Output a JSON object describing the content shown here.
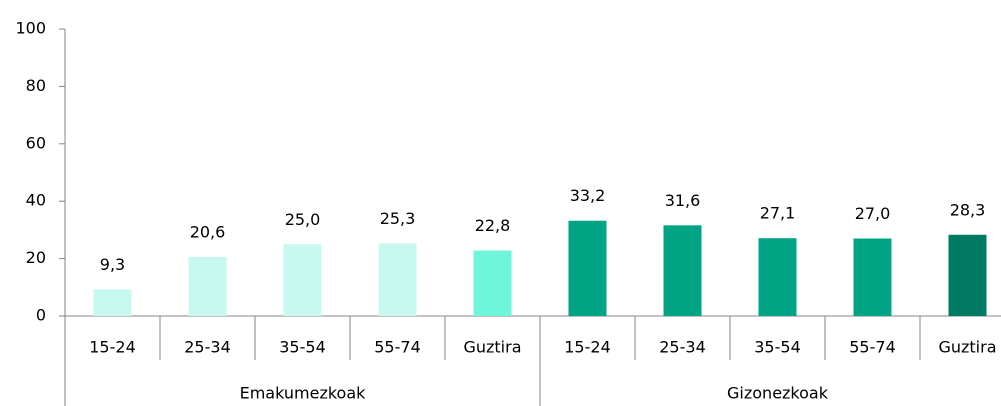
{
  "chart_data": {
    "type": "bar",
    "groups": [
      {
        "label": "Emakumezkoak",
        "categories": [
          "15-24",
          "25-34",
          "35-54",
          "55-74",
          "Guztira"
        ],
        "values": [
          9.3,
          20.6,
          25.0,
          25.3,
          22.8
        ],
        "value_labels": [
          "9,3",
          "20,6",
          "25,0",
          "25,3",
          "22,8"
        ],
        "colors": [
          "#c7f9f1",
          "#c7f9f1",
          "#c7f9f1",
          "#c7f9f1",
          "#6ff5d9"
        ]
      },
      {
        "label": "Gizonezkoak",
        "categories": [
          "15-24",
          "25-34",
          "35-54",
          "55-74",
          "Guztira"
        ],
        "values": [
          33.2,
          31.6,
          27.1,
          27.0,
          28.3
        ],
        "value_labels": [
          "33,2",
          "31,6",
          "27,1",
          "27,0",
          "28,3"
        ],
        "colors": [
          "#00a383",
          "#00a383",
          "#00a383",
          "#00a383",
          "#007a62"
        ]
      }
    ],
    "ylim": [
      0,
      100
    ],
    "yticks": [
      0,
      20,
      40,
      60,
      80,
      100
    ],
    "grid": false
  }
}
